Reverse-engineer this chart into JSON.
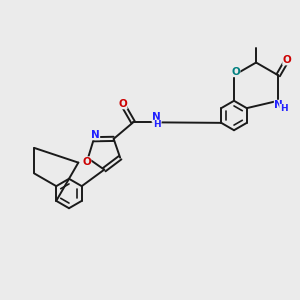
{
  "bg_color": "#ebebeb",
  "bond_color": "#1a1a1a",
  "bond_width": 1.4,
  "N_color": "#2020ff",
  "O_color": "#cc0000",
  "O_teal_color": "#008080",
  "font": "DejaVu Sans",
  "figsize": [
    3.0,
    3.0
  ],
  "dpi": 100,
  "xlim": [
    0,
    10
  ],
  "ylim": [
    0,
    10
  ]
}
